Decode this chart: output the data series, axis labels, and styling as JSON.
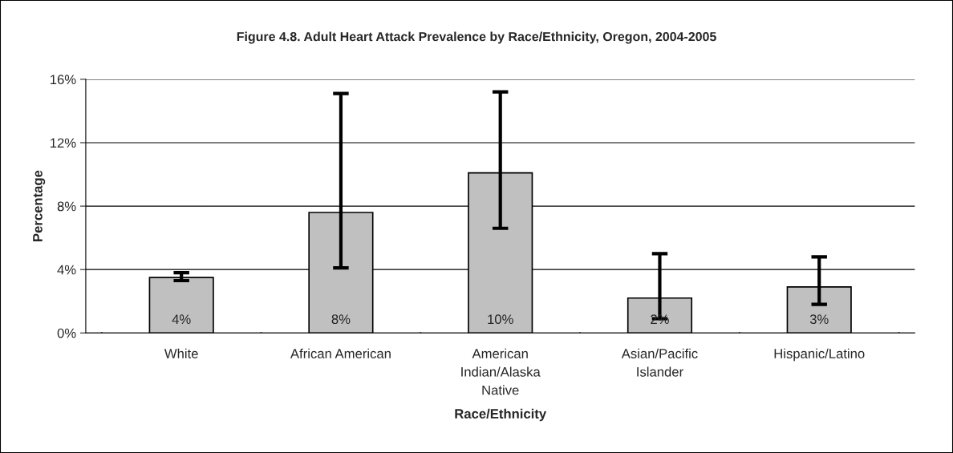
{
  "chart_data": {
    "type": "bar",
    "title": "Figure 4.8. Adult Heart Attack Prevalence by Race/Ethnicity, Oregon, 2004-2005",
    "xlabel": "Race/Ethnicity",
    "ylabel": "Percentage",
    "categories": [
      "White",
      "African American",
      "American\nIndian/Alaska\nNative",
      "Asian/Pacific\nIslander",
      "Hispanic/Latino"
    ],
    "values": [
      3.5,
      7.6,
      10.1,
      2.2,
      2.9
    ],
    "errors": [
      [
        3.3,
        3.8
      ],
      [
        4.1,
        15.1
      ],
      [
        6.6,
        15.2
      ],
      [
        0.9,
        5.0
      ],
      [
        1.8,
        4.8
      ]
    ],
    "value_labels": [
      "4%",
      "8%",
      "10%",
      "2%",
      "3%"
    ],
    "color": "#c0c0c0",
    "ylim": [
      0,
      16
    ],
    "yticks": [
      {
        "value": 0,
        "label": "0%"
      },
      {
        "value": 4,
        "label": "4%"
      },
      {
        "value": 8,
        "label": "8%"
      },
      {
        "value": 12,
        "label": "12%"
      },
      {
        "value": 16,
        "label": "16%"
      }
    ],
    "grid": "y"
  }
}
